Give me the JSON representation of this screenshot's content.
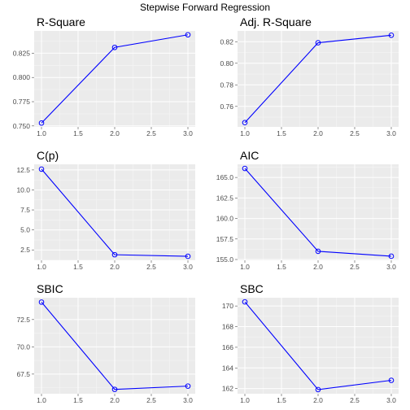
{
  "title": "Stepwise Forward Regression",
  "colors": {
    "series": "#0000ff",
    "panel": "#ebebeb",
    "grid": "#ffffff",
    "tick_text": "#4d4d4d"
  },
  "chart_data": [
    {
      "type": "line",
      "title": "R-Square",
      "x": [
        1,
        2,
        3
      ],
      "values": [
        0.753,
        0.831,
        0.844
      ],
      "xlim": [
        0.9,
        3.1
      ],
      "ylim": [
        0.749,
        0.848
      ],
      "xticks": [
        "1.0",
        "1.5",
        "2.0",
        "2.5",
        "3.0"
      ],
      "yticks": [
        "0.750",
        "0.775",
        "0.800",
        "0.825"
      ],
      "grid": true
    },
    {
      "type": "line",
      "title": "Adj. R-Square",
      "x": [
        1,
        2,
        3
      ],
      "values": [
        0.745,
        0.819,
        0.826
      ],
      "xlim": [
        0.9,
        3.1
      ],
      "ylim": [
        0.741,
        0.83
      ],
      "xticks": [
        "1.0",
        "1.5",
        "2.0",
        "2.5",
        "3.0"
      ],
      "yticks": [
        "0.76",
        "0.78",
        "0.80",
        "0.82"
      ],
      "grid": true
    },
    {
      "type": "line",
      "title": "C(p)",
      "x": [
        1,
        2,
        3
      ],
      "values": [
        12.6,
        1.9,
        1.7
      ],
      "xlim": [
        0.9,
        3.1
      ],
      "ylim": [
        1.2,
        13.2
      ],
      "xticks": [
        "1.0",
        "1.5",
        "2.0",
        "2.5",
        "3.0"
      ],
      "yticks": [
        "2.5",
        "5.0",
        "7.5",
        "10.0",
        "12.5"
      ],
      "grid": true
    },
    {
      "type": "line",
      "title": "AIC",
      "x": [
        1,
        2,
        3
      ],
      "values": [
        166.1,
        156.0,
        155.4
      ],
      "xlim": [
        0.9,
        3.1
      ],
      "ylim": [
        154.9,
        166.6
      ],
      "xticks": [
        "1.0",
        "1.5",
        "2.0",
        "2.5",
        "3.0"
      ],
      "yticks": [
        "155.0",
        "157.5",
        "160.0",
        "162.5",
        "165.0"
      ],
      "grid": true
    },
    {
      "type": "line",
      "title": "SBIC",
      "x": [
        1,
        2,
        3
      ],
      "values": [
        74.1,
        66.1,
        66.4
      ],
      "xlim": [
        0.9,
        3.1
      ],
      "ylim": [
        65.7,
        74.5
      ],
      "xticks": [
        "1.0",
        "1.5",
        "2.0",
        "2.5",
        "3.0"
      ],
      "yticks": [
        "67.5",
        "70.0",
        "72.5"
      ],
      "grid": true
    },
    {
      "type": "line",
      "title": "SBC",
      "x": [
        1,
        2,
        3
      ],
      "values": [
        170.4,
        161.9,
        162.8
      ],
      "xlim": [
        0.9,
        3.1
      ],
      "ylim": [
        161.5,
        170.8
      ],
      "xticks": [
        "1.0",
        "1.5",
        "2.0",
        "2.5",
        "3.0"
      ],
      "yticks": [
        "162",
        "164",
        "166",
        "168",
        "170"
      ],
      "grid": true
    }
  ]
}
